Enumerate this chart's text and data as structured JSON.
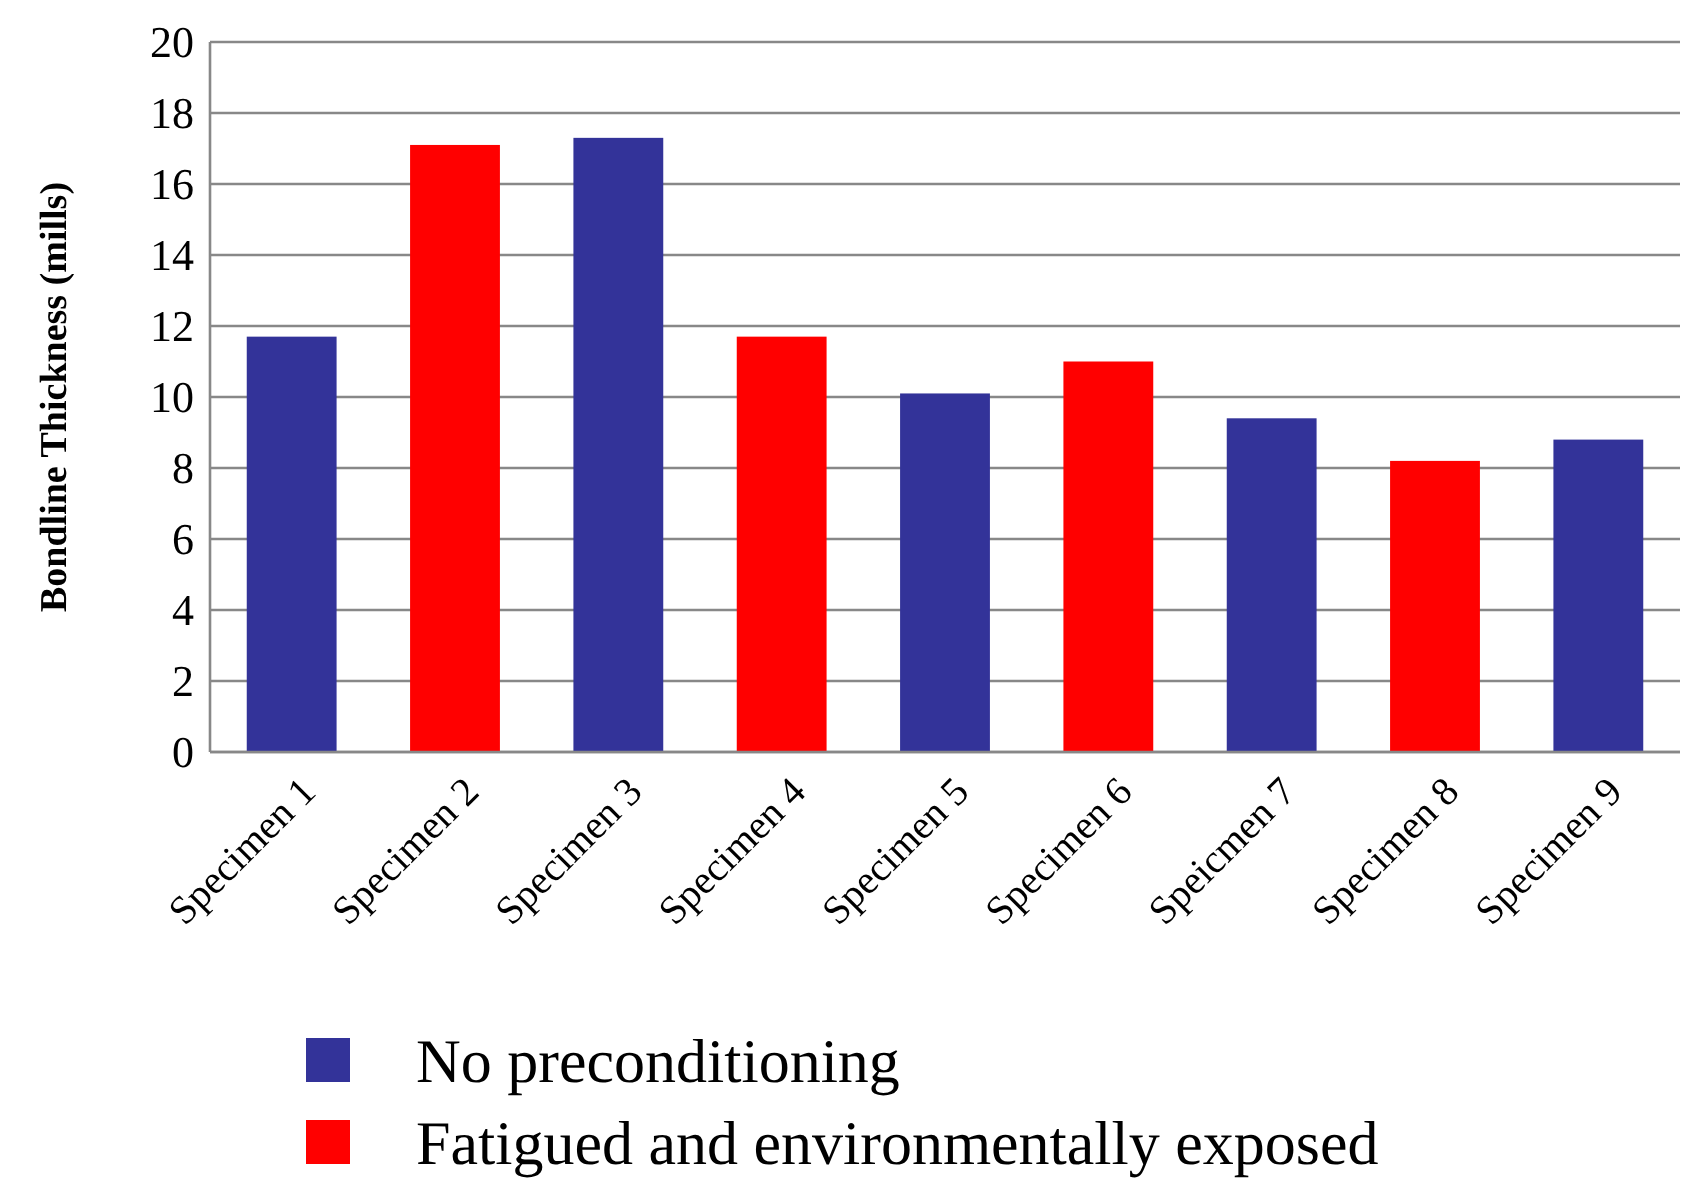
{
  "chart_data": {
    "type": "bar",
    "ylabel": "Bondline Thickness (mills)",
    "categories": [
      "Specimen 1",
      "Specimen 2",
      "Specimen 3",
      "Specimen 4",
      "Specimen 5",
      "Specimen 6",
      "Speicmen 7",
      "Specimen 8",
      "Specimen 9"
    ],
    "series": [
      {
        "name": "No preconditioning",
        "color": "#333399",
        "values": [
          11.7,
          null,
          17.3,
          null,
          10.1,
          null,
          9.4,
          null,
          8.8
        ]
      },
      {
        "name": "Fatigued and environmentally exposed",
        "color": "#ff0000",
        "values": [
          null,
          17.1,
          null,
          11.7,
          null,
          11.0,
          null,
          8.2,
          null
        ]
      }
    ],
    "ylim": [
      0,
      20
    ],
    "yticks": [
      0,
      2,
      4,
      6,
      8,
      10,
      12,
      14,
      16,
      18,
      20
    ],
    "grid": "y",
    "legend": "bottom"
  }
}
